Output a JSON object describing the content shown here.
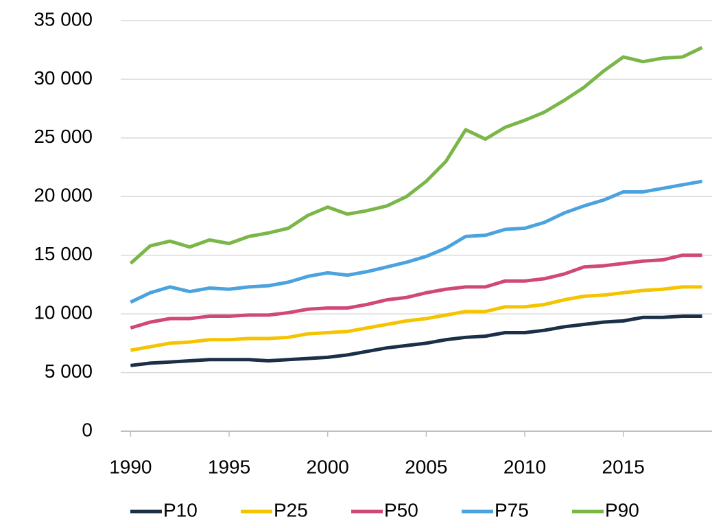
{
  "chart_data": {
    "type": "line",
    "x": [
      1990,
      1991,
      1992,
      1993,
      1994,
      1995,
      1996,
      1997,
      1998,
      1999,
      2000,
      2001,
      2002,
      2003,
      2004,
      2005,
      2006,
      2007,
      2008,
      2009,
      2010,
      2011,
      2012,
      2013,
      2014,
      2015,
      2016,
      2017,
      2018,
      2019
    ],
    "xlim": [
      1989.5,
      2019.5
    ],
    "xticks": [
      1990,
      1995,
      2000,
      2005,
      2010,
      2015
    ],
    "ylim": [
      0,
      35000
    ],
    "yticks": [
      0,
      {
        "value": 5000,
        "label": "5 000"
      },
      {
        "value": 10000,
        "label": "10 000"
      },
      {
        "value": 15000,
        "label": "15 000"
      },
      {
        "value": 20000,
        "label": "20 000"
      },
      {
        "value": 25000,
        "label": "25 000"
      },
      {
        "value": 30000,
        "label": "30 000"
      },
      {
        "value": 35000,
        "label": "35 000"
      }
    ],
    "grid": true,
    "legend": "bottom",
    "series": [
      {
        "name": "P10",
        "color": "#1b2f48",
        "values": [
          5600,
          5800,
          5900,
          6000,
          6100,
          6100,
          6100,
          6000,
          6100,
          6200,
          6300,
          6500,
          6800,
          7100,
          7300,
          7500,
          7800,
          8000,
          8100,
          8400,
          8400,
          8600,
          8900,
          9100,
          9300,
          9400,
          9700,
          9700,
          9800,
          9800
        ]
      },
      {
        "name": "P25",
        "color": "#f5c400",
        "values": [
          6900,
          7200,
          7500,
          7600,
          7800,
          7800,
          7900,
          7900,
          8000,
          8300,
          8400,
          8500,
          8800,
          9100,
          9400,
          9600,
          9900,
          10200,
          10200,
          10600,
          10600,
          10800,
          11200,
          11500,
          11600,
          11800,
          12000,
          12100,
          12300,
          12300
        ]
      },
      {
        "name": "P50",
        "color": "#d0487a",
        "values": [
          8800,
          9300,
          9600,
          9600,
          9800,
          9800,
          9900,
          9900,
          10100,
          10400,
          10500,
          10500,
          10800,
          11200,
          11400,
          11800,
          12100,
          12300,
          12300,
          12800,
          12800,
          13000,
          13400,
          14000,
          14100,
          14300,
          14500,
          14600,
          15000,
          15000
        ]
      },
      {
        "name": "P75",
        "color": "#4aa3df",
        "values": [
          11000,
          11800,
          12300,
          11900,
          12200,
          12100,
          12300,
          12400,
          12700,
          13200,
          13500,
          13300,
          13600,
          14000,
          14400,
          14900,
          15600,
          16600,
          16700,
          17200,
          17300,
          17800,
          18600,
          19200,
          19700,
          20400,
          20400,
          20700,
          21000,
          21300
        ]
      },
      {
        "name": "P90",
        "color": "#7ab648",
        "values": [
          14300,
          15800,
          16200,
          15700,
          16300,
          16000,
          16600,
          16900,
          17300,
          18400,
          19100,
          18500,
          18800,
          19200,
          20000,
          21300,
          23000,
          25700,
          24900,
          25900,
          26500,
          27200,
          28200,
          29300,
          30700,
          31900,
          31500,
          31800,
          31900,
          32700
        ]
      }
    ]
  }
}
